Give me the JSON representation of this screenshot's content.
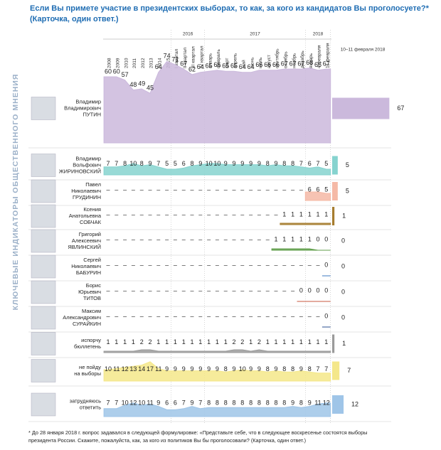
{
  "chart_data": {
    "type": "area",
    "title": "Если Вы примете участие в президентских выборах, то как, за кого из кандидатов Вы проголосуете?*",
    "subtitle": "(Карточка, один ответ.)",
    "side_label": "КЛЮЧЕВЫЕ ИНДИКАТОРЫ ОБЩЕСТВЕННОГО МНЕНИЯ",
    "current_header": "10–11 февраля 2018",
    "missing_label": "–",
    "columns": [
      "2008",
      "2009",
      "2010",
      "2011",
      "2012",
      "2013",
      "2014",
      "2015"
    ],
    "groups": [
      {
        "label": "2016",
        "columns": [
          "I квартал",
          "II квартал",
          "III квартал",
          "IV квартал"
        ]
      },
      {
        "label": "2017",
        "columns": [
          "январь",
          "февраль",
          "март",
          "апрель",
          "май",
          "июнь",
          "июль",
          "август",
          "сентябрь",
          "октябрь",
          "ноябрь",
          "декабрь"
        ]
      },
      {
        "label": "2018",
        "columns": [
          "январь",
          "4 февраля",
          "11 февраля"
        ]
      }
    ],
    "rows": [
      {
        "name_lines": [
          "Владимир",
          "Владимирович",
          "ПУТИН"
        ],
        "color": "#cbb9dc",
        "current": 67,
        "values": [
          60,
          60,
          57,
          48,
          49,
          45,
          64,
          74,
          71,
          67,
          62,
          64,
          65,
          66,
          65,
          65,
          64,
          64,
          66,
          66,
          66,
          67,
          67,
          67,
          68,
          66,
          67
        ]
      },
      {
        "name_lines": [
          "Владимир",
          "Вольфович",
          "ЖИРИНОВСКИЙ"
        ],
        "color": "#86d3cf",
        "current": 5,
        "values": [
          7,
          7,
          8,
          10,
          8,
          9,
          7,
          5,
          5,
          6,
          8,
          9,
          10,
          10,
          9,
          9,
          9,
          9,
          9,
          8,
          9,
          8,
          8,
          7,
          6,
          7,
          5
        ]
      },
      {
        "name_lines": [
          "Павел",
          "Николаевич",
          "ГРУДИНИН"
        ],
        "color": "#f5b9a6",
        "current": 5,
        "values": [
          null,
          null,
          null,
          null,
          null,
          null,
          null,
          null,
          null,
          null,
          null,
          null,
          null,
          null,
          null,
          null,
          null,
          null,
          null,
          null,
          null,
          null,
          null,
          null,
          6,
          6,
          5
        ]
      },
      {
        "name_lines": [
          "Ксения",
          "Анатольевна",
          "СОБЧАК"
        ],
        "color": "#a67c2e",
        "current": 1,
        "values": [
          null,
          null,
          null,
          null,
          null,
          null,
          null,
          null,
          null,
          null,
          null,
          null,
          null,
          null,
          null,
          null,
          null,
          null,
          null,
          null,
          null,
          1,
          1,
          1,
          1,
          1,
          1
        ]
      },
      {
        "name_lines": [
          "Григорий",
          "Алексеевич",
          "ЯВЛИНСКИЙ"
        ],
        "color": "#5f9e4a",
        "current": 0,
        "values": [
          null,
          null,
          null,
          null,
          null,
          null,
          null,
          null,
          null,
          null,
          null,
          null,
          null,
          null,
          null,
          null,
          null,
          null,
          null,
          null,
          1,
          1,
          1,
          1,
          1,
          0,
          0
        ]
      },
      {
        "name_lines": [
          "Сергей",
          "Николаевич",
          "БАБУРИН"
        ],
        "color": "#3d78c2",
        "current": 0,
        "values": [
          null,
          null,
          null,
          null,
          null,
          null,
          null,
          null,
          null,
          null,
          null,
          null,
          null,
          null,
          null,
          null,
          null,
          null,
          null,
          null,
          null,
          null,
          null,
          null,
          null,
          null,
          0
        ]
      },
      {
        "name_lines": [
          "Борис",
          "Юрьевич",
          "ТИТОВ"
        ],
        "color": "#c9573f",
        "current": 0,
        "values": [
          null,
          null,
          null,
          null,
          null,
          null,
          null,
          null,
          null,
          null,
          null,
          null,
          null,
          null,
          null,
          null,
          null,
          null,
          null,
          null,
          null,
          null,
          null,
          0,
          0,
          0,
          0
        ]
      },
      {
        "name_lines": [
          "Максим",
          "Александрович",
          "СУРАЙКИН"
        ],
        "color": "#2a4f8f",
        "current": 0,
        "values": [
          null,
          null,
          null,
          null,
          null,
          null,
          null,
          null,
          null,
          null,
          null,
          null,
          null,
          null,
          null,
          null,
          null,
          null,
          null,
          null,
          null,
          null,
          null,
          null,
          null,
          null,
          0
        ]
      },
      {
        "name_lines": [
          "испорчу",
          "бюллетень"
        ],
        "color": "#9a9a9a",
        "current": 1,
        "values": [
          1,
          1,
          1,
          1,
          2,
          2,
          1,
          1,
          1,
          1,
          1,
          1,
          1,
          1,
          1,
          2,
          2,
          1,
          2,
          1,
          1,
          1,
          1,
          1,
          1,
          1,
          1
        ]
      },
      {
        "name_lines": [
          "не пойду",
          "на выборы"
        ],
        "color": "#f4e78a",
        "current": 7,
        "values": [
          10,
          11,
          12,
          13,
          14,
          17,
          11,
          9,
          9,
          9,
          9,
          9,
          9,
          9,
          8,
          9,
          10,
          9,
          9,
          8,
          9,
          8,
          8,
          9,
          8,
          7,
          7
        ]
      },
      {
        "name_lines": [
          "затрудняюсь",
          "ответить"
        ],
        "color": "#9fc5e8",
        "current": 12,
        "values": [
          7,
          7,
          10,
          12,
          10,
          11,
          9,
          6,
          6,
          7,
          9,
          7,
          8,
          8,
          8,
          8,
          8,
          8,
          8,
          8,
          8,
          8,
          9,
          8,
          9,
          11,
          12
        ]
      }
    ],
    "footnote": [
      "*  До 28 января 2018 г. вопрос задавался в следующей формулировке: «Представьте себе, что в следующее воскресенье состоятся выборы",
      "президента России. Скажите, пожалуйста, как, за кого из политиков Вы бы проголосовали? (Карточка, один ответ.)"
    ]
  }
}
